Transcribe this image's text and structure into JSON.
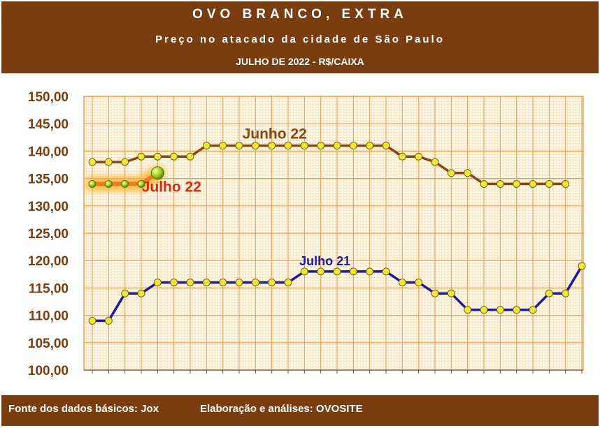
{
  "header": {
    "title": "OVO BRANCO, EXTRA",
    "subtitle": "Preço no atacado da cidade de São Paulo",
    "period": "JULHO DE 2022 - R$/CAIXA"
  },
  "footer": {
    "source": "Fonte dos dados básicos: Jox",
    "credits": "Elaboração e análises: OVOSITE"
  },
  "colors": {
    "header_bg": "#7a3d10",
    "plot_bg": "#fdf2dc",
    "grid": "#e8a34a",
    "junho22": "#8b4513",
    "julho22": "#f07a1e",
    "julho21": "#1a1aa6",
    "marker": "#f2e536"
  },
  "chart_data": {
    "type": "line",
    "ylim": [
      100,
      150
    ],
    "y_ticks": [
      "150,00",
      "145,00",
      "140,00",
      "135,00",
      "130,00",
      "125,00",
      "120,00",
      "115,00",
      "110,00",
      "105,00",
      "100,00"
    ],
    "x_count": 31,
    "grid": true,
    "series": [
      {
        "name": "Junho 22",
        "values": [
          138,
          138,
          138,
          139,
          139,
          139,
          139,
          141,
          141,
          141,
          141,
          141,
          141,
          141,
          141,
          141,
          141,
          141,
          141,
          139,
          139,
          138,
          136,
          136,
          134,
          134,
          134,
          134,
          134,
          134
        ]
      },
      {
        "name": "Julho 22",
        "values": [
          134,
          134,
          134,
          134,
          136
        ]
      },
      {
        "name": "Julho 21",
        "values": [
          109,
          109,
          114,
          114,
          116,
          116,
          116,
          116,
          116,
          116,
          116,
          116,
          116,
          118,
          118,
          118,
          118,
          118,
          118,
          116,
          116,
          114,
          114,
          111,
          111,
          111,
          111,
          111,
          114,
          114,
          119
        ]
      }
    ]
  }
}
